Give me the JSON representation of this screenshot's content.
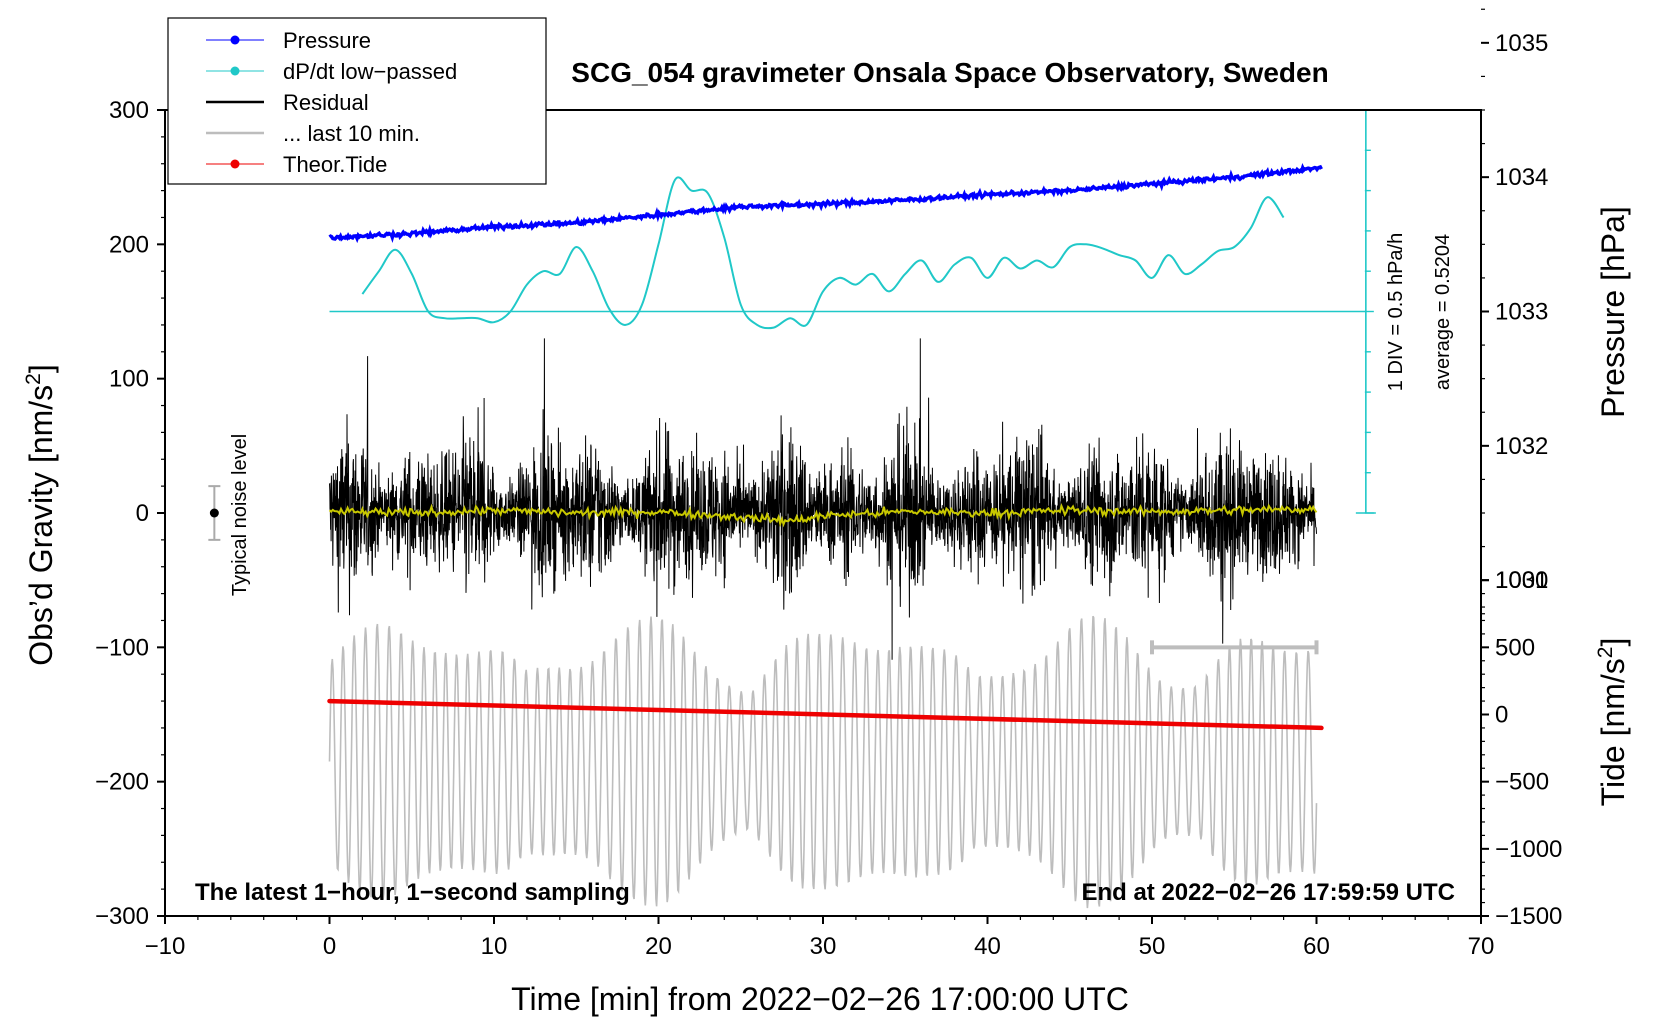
{
  "colors": {
    "pressure": "#0000ff",
    "dpdt": "#20c8c8",
    "residual": "#000000",
    "last10": "#bdbdbd",
    "tide": "#ee0000",
    "smoothed": "#c8c800",
    "frame": "#000000"
  },
  "chart_data": {
    "type": "line",
    "title": "SCG_054 gravimeter Onsala Space Observatory, Sweden",
    "xlabel": "Time [min] from 2022−02−26 17:00:00 UTC",
    "ylabel_left_main": "Obs’d Gravity [nm/s",
    "ylabel_left_sup": "2",
    "ylabel_left_close": "]",
    "ylabel_right_pressure": "Pressure [hPa]",
    "ylabel_right_tide_main": "Tide [nm/s",
    "ylabel_right_tide_sup": "2",
    "ylabel_right_tide_close": "]",
    "xlim": [
      -10,
      70
    ],
    "ylim": [
      -300,
      300
    ],
    "x_ticks": [
      "−10",
      "0",
      "10",
      "20",
      "30",
      "40",
      "50",
      "60",
      "70"
    ],
    "x_tick_values": [
      -10,
      0,
      10,
      20,
      30,
      40,
      50,
      60,
      70
    ],
    "y_ticks": [
      "300",
      "200",
      "100",
      "0",
      "−100",
      "−200",
      "−300"
    ],
    "y_tick_values": [
      300,
      200,
      100,
      0,
      -100,
      -200,
      -300
    ],
    "pressure_axis": {
      "ticks": [
        "1035",
        "1034",
        "1033",
        "1032",
        "1031"
      ],
      "tick_values": [
        1035,
        1034,
        1033,
        1032,
        1031
      ],
      "hpa_per_gravity_unit": 0.01
    },
    "tide_axis": {
      "ticks": [
        "1000",
        "500",
        "0",
        "−500",
        "−1000",
        "−1500"
      ],
      "tick_values": [
        1000,
        500,
        0,
        -500,
        -1000,
        -1500
      ],
      "tide_per_gravity_unit": 10,
      "tide_zero_at_gravity": -150
    },
    "legend": [
      {
        "label": "Pressure",
        "series": "pressure",
        "style": "line-dot"
      },
      {
        "label": "dP/dt low−passed",
        "series": "dpdt",
        "style": "line-dot"
      },
      {
        "label": "Residual",
        "series": "residual",
        "style": "line"
      },
      {
        "label": "... last 10 min.",
        "series": "last10",
        "style": "line"
      },
      {
        "label": "Theor.Tide",
        "series": "tide",
        "style": "line-dot"
      }
    ],
    "series": [
      {
        "name": "Pressure",
        "unit": "hPa",
        "x": [
          0,
          5,
          10,
          15,
          20,
          25,
          30,
          35,
          40,
          45,
          50,
          55,
          60.3
        ],
        "values": [
          1033.55,
          1033.58,
          1033.63,
          1033.66,
          1033.72,
          1033.78,
          1033.8,
          1033.83,
          1033.87,
          1033.9,
          1033.95,
          1034.0,
          1034.07
        ]
      },
      {
        "name": "dP/dt low-passed",
        "unit": "gravity-axis units",
        "x": [
          2,
          3,
          4,
          5,
          6,
          7,
          8,
          9,
          10,
          11,
          12,
          13,
          14,
          15,
          16,
          17,
          18,
          19,
          20,
          21,
          22,
          23,
          24,
          25,
          26,
          27,
          28,
          29,
          30,
          31,
          32,
          33,
          34,
          35,
          36,
          37,
          38,
          39,
          40,
          41,
          42,
          43,
          44,
          45,
          46,
          47,
          48,
          49,
          50,
          51,
          52,
          53,
          54,
          55,
          56,
          57,
          58
        ],
        "values": [
          163,
          180,
          196,
          178,
          150,
          145,
          145,
          145,
          142,
          150,
          170,
          180,
          178,
          198,
          180,
          152,
          140,
          155,
          200,
          248,
          240,
          238,
          205,
          155,
          140,
          138,
          145,
          140,
          165,
          175,
          170,
          178,
          165,
          178,
          188,
          172,
          185,
          190,
          175,
          190,
          182,
          188,
          183,
          198,
          200,
          197,
          192,
          188,
          175,
          192,
          178,
          185,
          195,
          198,
          212,
          235,
          220
        ]
      },
      {
        "name": "Residual",
        "unit": "nm/s2",
        "x_range": [
          0,
          60
        ],
        "envelope_max": 130,
        "envelope_min": -110
      },
      {
        "name": "Residual smoothed",
        "unit": "nm/s2",
        "x": [
          0,
          5,
          10,
          15,
          20,
          25,
          28,
          30,
          35,
          40,
          45,
          50,
          55,
          60
        ],
        "values": [
          1,
          0,
          2,
          0,
          1,
          -3,
          -6,
          -2,
          1,
          0,
          2,
          1,
          2,
          3
        ]
      },
      {
        "name": "last 10 min.",
        "unit": "nm/s2",
        "x_range": [
          0,
          60
        ],
        "center": -185,
        "amplitude": 85
      },
      {
        "name": "Theor.Tide",
        "unit": "nm/s2",
        "x": [
          0,
          60.3
        ],
        "values": [
          100,
          -100
        ]
      }
    ],
    "noise_indicator": {
      "label": "Typical noise level",
      "center": 0,
      "halfwidth": 20,
      "x": -7
    },
    "scale_bar": {
      "label": "1 DIV = 0.5 hPa/h",
      "average_label": "average = 0.5204",
      "baseline": 150,
      "top": 300,
      "bottom": 0,
      "x": 63
    },
    "last10_bar": {
      "x_start": 50,
      "x_end": 60,
      "y": -100
    },
    "notes": {
      "left": "The latest 1−hour, 1−second sampling",
      "right": "End at 2022−02−26 17:59:59 UTC"
    }
  }
}
